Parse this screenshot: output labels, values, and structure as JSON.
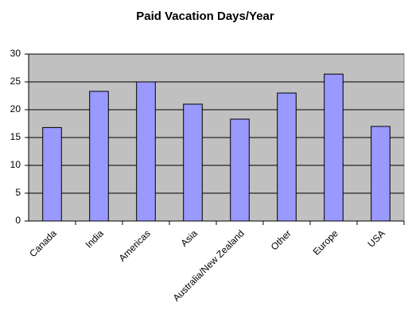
{
  "chart_data": {
    "type": "bar",
    "title": "Paid Vacation Days/Year",
    "categories": [
      "Canada",
      "India",
      "Americas",
      "Asia",
      "Australia/New Zealand",
      "Other",
      "Europe",
      "USA"
    ],
    "values": [
      16.8,
      23.3,
      25,
      21,
      18.3,
      23,
      26.4,
      17
    ],
    "color": "#9999ff",
    "ylim": [
      0,
      30
    ],
    "yticks": [
      0,
      5,
      10,
      15,
      20,
      25,
      30
    ],
    "grid": true
  }
}
